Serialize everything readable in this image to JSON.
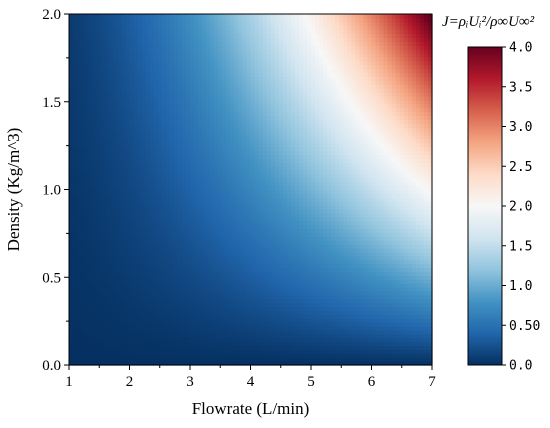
{
  "chart_data": {
    "type": "heatmap",
    "title": "",
    "xlabel": "Flowrate (L/min)",
    "ylabel": "Density (Kg/m^3)",
    "xlim": [
      1,
      7
    ],
    "ylim": [
      0.0,
      2.0
    ],
    "x_ticks": [
      "1",
      "2",
      "3",
      "4",
      "5",
      "6",
      "7"
    ],
    "y_ticks": [
      "0.0",
      "0.5",
      "1.0",
      "1.5",
      "2.0"
    ],
    "colorbar": {
      "title": "J=ρᵢUᵢ²/ρ∞U∞²",
      "range": [
        0.0,
        4.0
      ],
      "ticks": [
        "0.0",
        "0.50",
        "1.0",
        "1.5",
        "2.0",
        "2.5",
        "3.0",
        "3.5",
        "4.0"
      ],
      "colormap": "RdBu_r",
      "colors": [
        "#053061",
        "#2166ac",
        "#4393c3",
        "#92c5de",
        "#d1e5f0",
        "#f7f7f7",
        "#fddbc7",
        "#f4a582",
        "#d6604d",
        "#b2182b",
        "#67001f"
      ]
    },
    "z_function": "J proportional to density × flowrate², J = 4.1 at (7, 2.0)",
    "grid": false
  }
}
